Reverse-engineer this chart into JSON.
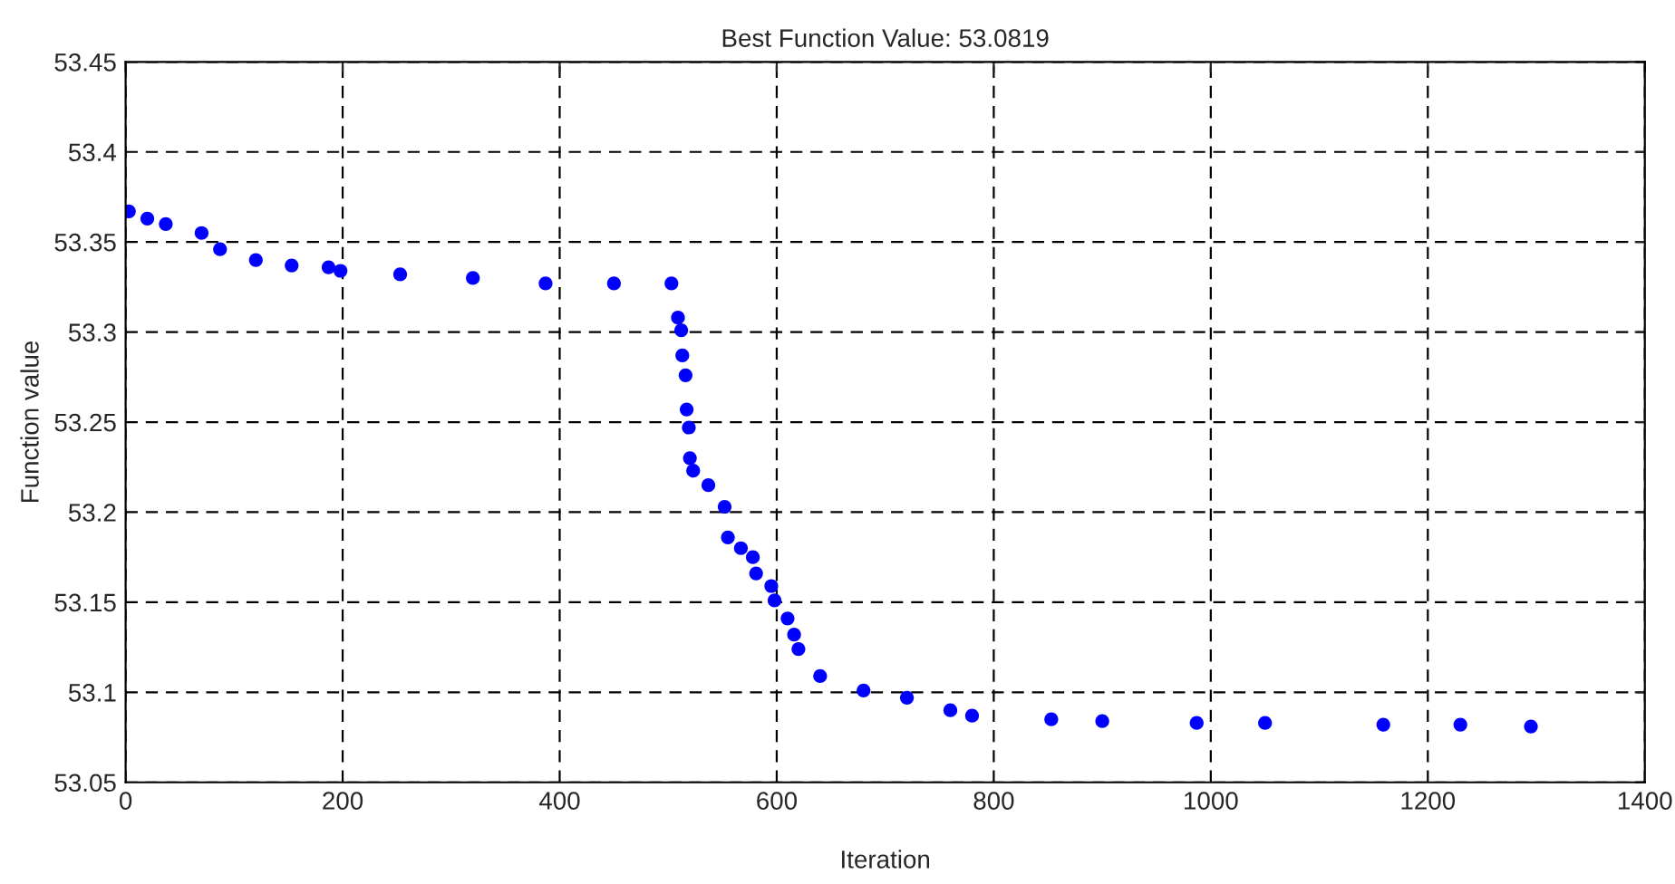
{
  "chart_data": {
    "type": "scatter",
    "title": "Best Function Value: 53.0819",
    "xlabel": "Iteration",
    "ylabel": "Function value",
    "series": [
      {
        "color": "#0000ff",
        "x": [
          3,
          20,
          37,
          70,
          87,
          120,
          153,
          187,
          198,
          253,
          320,
          387,
          450,
          503,
          509,
          512,
          513,
          516,
          517,
          519,
          520,
          523,
          537,
          552,
          555,
          567,
          578,
          581,
          595,
          598,
          610,
          616,
          620,
          640,
          680,
          720,
          760,
          780,
          853,
          900,
          987,
          1050,
          1159,
          1230,
          1295
        ],
        "values": [
          53.367,
          53.363,
          53.36,
          53.355,
          53.346,
          53.34,
          53.337,
          53.336,
          53.334,
          53.332,
          53.33,
          53.327,
          53.327,
          53.327,
          53.308,
          53.301,
          53.287,
          53.276,
          53.257,
          53.247,
          53.23,
          53.223,
          53.215,
          53.203,
          53.186,
          53.18,
          53.175,
          53.166,
          53.159,
          53.151,
          53.141,
          53.132,
          53.124,
          53.109,
          53.101,
          53.097,
          53.09,
          53.087,
          53.085,
          53.084,
          53.083,
          53.083,
          53.082,
          53.082,
          53.081
        ]
      }
    ],
    "xlim": [
      0,
      1400
    ],
    "xticks": [
      0,
      200,
      400,
      600,
      800,
      1000,
      1200,
      1400
    ],
    "ylim": [
      53.05,
      53.45
    ],
    "yticks": [
      {
        "value": 53.05,
        "label": "53.05"
      },
      {
        "value": 53.1,
        "label": "53.1"
      },
      {
        "value": 53.15,
        "label": "53.15"
      },
      {
        "value": 53.2,
        "label": "53.2"
      },
      {
        "value": 53.25,
        "label": "53.25"
      },
      {
        "value": 53.3,
        "label": "53.3"
      },
      {
        "value": 53.35,
        "label": "53.35"
      },
      {
        "value": 53.4,
        "label": "53.4"
      },
      {
        "value": 53.45,
        "label": "53.45"
      }
    ],
    "grid": true,
    "marker": "circle"
  }
}
